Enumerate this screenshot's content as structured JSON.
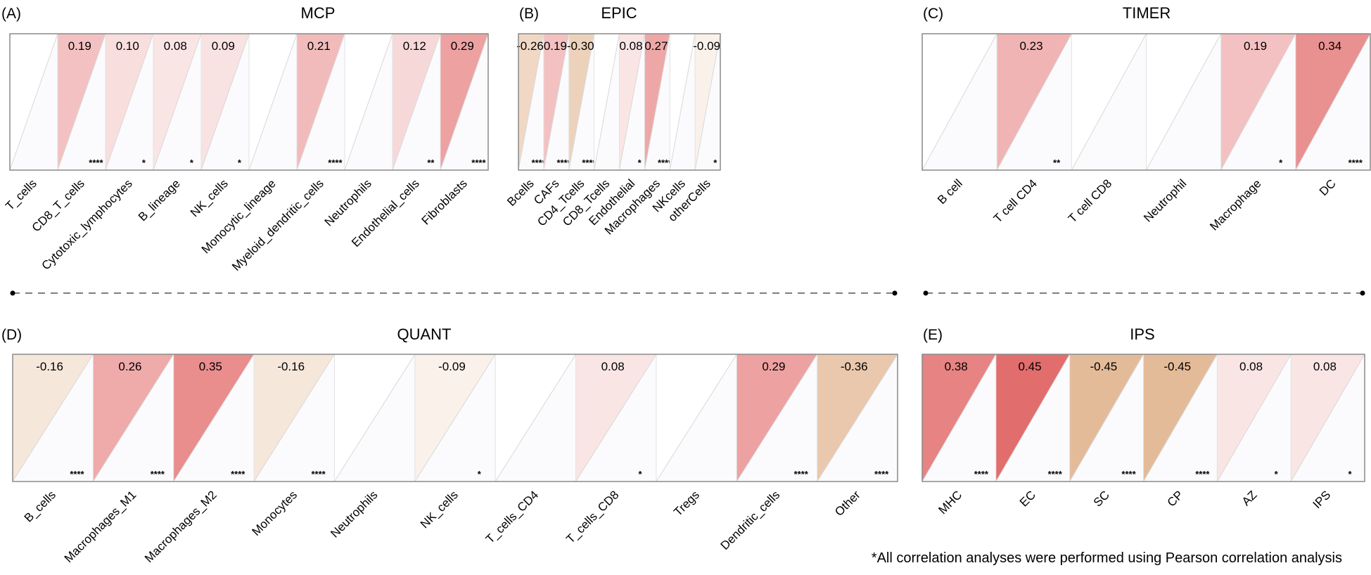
{
  "footnote": "*All correlation analyses were performed using Pearson correlation analysis",
  "colors": {
    "positive": "#e06060",
    "negative": "#d4915a",
    "empty_cell": "#ffffff",
    "lower_triangle": "#fbfbfd",
    "frame": "#8a8a8a",
    "separator": "#555555"
  },
  "chart_data": [
    {
      "type": "heatmap",
      "panel": "(A)",
      "title": "MCP",
      "categories": [
        "T_cells",
        "CD8_T_cells",
        "Cytotoxic_lymphocytes",
        "B_lineage",
        "NK_cells",
        "Monocytic_lineage",
        "Myeloid_dendritic_cells",
        "Neutrophils",
        "Endothelial_cells",
        "Fibroblasts"
      ],
      "values": [
        null,
        0.19,
        0.1,
        0.08,
        0.09,
        null,
        0.21,
        null,
        0.12,
        0.29
      ],
      "labels": [
        "",
        "0.19",
        "0.10",
        "0.08",
        "0.09",
        "",
        "0.21",
        "",
        "0.12",
        "0.29"
      ],
      "significance": [
        "",
        "****",
        "*",
        "*",
        "*",
        "",
        "****",
        "",
        "**",
        "****"
      ]
    },
    {
      "type": "heatmap",
      "panel": "(B)",
      "title": "EPIC",
      "categories": [
        "Bcells",
        "CAFs",
        "CD4_Tcells",
        "CD8_Tcells",
        "Endothelial",
        "Macrophages",
        "NKcells",
        "otherCells"
      ],
      "values": [
        -0.26,
        0.19,
        -0.3,
        null,
        0.08,
        0.27,
        null,
        -0.09
      ],
      "labels": [
        "-0.26",
        "0.19",
        "-0.30",
        "",
        "0.08",
        "0.27",
        "",
        "-0.09"
      ],
      "significance": [
        "****",
        "****",
        "****",
        "",
        "*",
        "****",
        "",
        "*"
      ]
    },
    {
      "type": "heatmap",
      "panel": "(C)",
      "title": "TIMER",
      "categories": [
        "B cell",
        "T cell CD4",
        "T cell CD8",
        "Neutrophil",
        "Macrophage",
        "DC"
      ],
      "values": [
        null,
        0.23,
        null,
        null,
        0.19,
        0.34
      ],
      "labels": [
        "",
        "0.23",
        "",
        "",
        "0.19",
        "0.34"
      ],
      "significance": [
        "",
        "**",
        "",
        "",
        "*",
        "****"
      ]
    },
    {
      "type": "heatmap",
      "panel": "(D)",
      "title": "QUANT",
      "categories": [
        "B_cells",
        "Macrophages_M1",
        "Macrophages_M2",
        "Monocytes",
        "Neutrophils",
        "NK_cells",
        "T_cells_CD4",
        "T_cells_CD8",
        "Tregs",
        "Dendritic_cells",
        "Other"
      ],
      "values": [
        -0.16,
        0.26,
        0.35,
        -0.16,
        null,
        -0.09,
        null,
        0.08,
        null,
        0.29,
        -0.36
      ],
      "labels": [
        "-0.16",
        "0.26",
        "0.35",
        "-0.16",
        "",
        "-0.09",
        "",
        "0.08",
        "",
        "0.29",
        "-0.36"
      ],
      "significance": [
        "****",
        "****",
        "****",
        "****",
        "",
        "*",
        "",
        "*",
        "",
        "****",
        "****"
      ]
    },
    {
      "type": "heatmap",
      "panel": "(E)",
      "title": "IPS",
      "categories": [
        "MHC",
        "EC",
        "SC",
        "CP",
        "AZ",
        "IPS"
      ],
      "values": [
        0.38,
        0.45,
        -0.45,
        -0.45,
        0.08,
        0.08
      ],
      "labels": [
        "0.38",
        "0.45",
        "-0.45",
        "-0.45",
        "0.08",
        "0.08"
      ],
      "significance": [
        "****",
        "****",
        "****",
        "****",
        "*",
        "*"
      ]
    }
  ]
}
